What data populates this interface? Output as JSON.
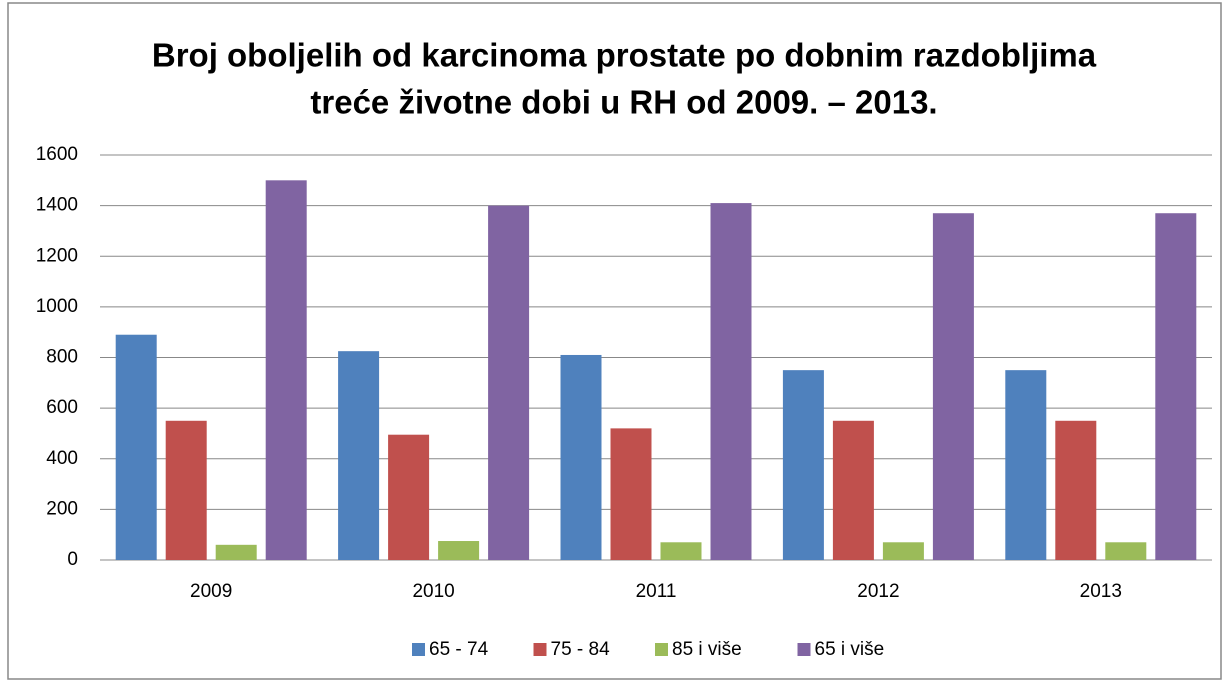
{
  "chart_data": {
    "type": "bar",
    "title": [
      "Broj  oboljelih od karcinoma prostate  po dobnim razdobljima",
      "treće životne dobi u RH od 2009. – 2013."
    ],
    "categories": [
      "2009",
      "2010",
      "2011",
      "2012",
      "2013"
    ],
    "series": [
      {
        "name": "65 - 74",
        "color": "#4f81bd",
        "values": [
          890,
          825,
          810,
          750,
          750
        ]
      },
      {
        "name": "75 - 84",
        "color": "#c0504d",
        "values": [
          550,
          495,
          520,
          550,
          550
        ]
      },
      {
        "name": "85 i više",
        "color": "#9bbb59",
        "values": [
          60,
          75,
          70,
          70,
          70
        ]
      },
      {
        "name": "65 i više",
        "color": "#8064a2",
        "values": [
          1500,
          1400,
          1410,
          1370,
          1370
        ]
      }
    ],
    "ylim": [
      0,
      1600
    ],
    "yticks": [
      0,
      200,
      400,
      600,
      800,
      1000,
      1200,
      1400,
      1600
    ],
    "grid": true,
    "legend": "bottom"
  }
}
